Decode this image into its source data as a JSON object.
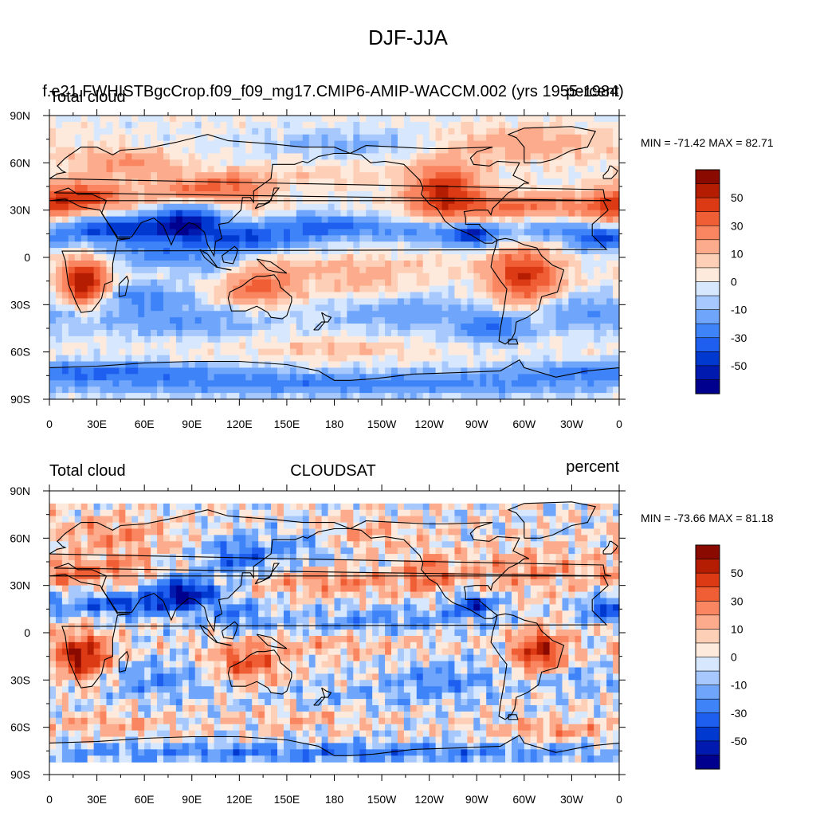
{
  "figure": {
    "title": "DJF-JJA",
    "colors": {
      "levels": [
        -60,
        -50,
        -40,
        -30,
        -20,
        -10,
        -5,
        0,
        5,
        10,
        20,
        30,
        40,
        50,
        60
      ],
      "palette": [
        "#00008f",
        "#001aaf",
        "#0039d0",
        "#1f5ff0",
        "#3e84f8",
        "#6fa6fb",
        "#a6c8fd",
        "#d7e8fe",
        "#feeadc",
        "#fecfb7",
        "#fcac8c",
        "#f98660",
        "#f05e36",
        "#dc3a14",
        "#b51d02",
        "#8a0a00"
      ],
      "land_outline": "#000000",
      "tick_color": "#000000"
    }
  },
  "chart_data": [
    {
      "type": "heatmap",
      "projection": "cylindrical-equidistant",
      "title": "",
      "left_title": "Total cloud",
      "center_title": "f.e21.FWHISTBgcCrop.f09_f09_mg17.CMIP6-AMIP-WACCM.002 (yrs 1955-1984)",
      "right_title": "percent",
      "stats_label": "MIN = -71.42 MAX =  82.71",
      "min": -71.42,
      "max": 82.71,
      "x_ticks": [
        "0",
        "30E",
        "60E",
        "90E",
        "120E",
        "150E",
        "180",
        "150W",
        "120W",
        "90W",
        "60W",
        "30W",
        "0"
      ],
      "y_ticks": [
        "90N",
        "60N",
        "30N",
        "0",
        "30S",
        "60S",
        "90S"
      ],
      "xlim": [
        0,
        360
      ],
      "ylim": [
        -90,
        90
      ],
      "colorbar_labels": [
        "50",
        "30",
        "10",
        "0",
        "-10",
        "-30",
        "-50"
      ],
      "lat_range": [
        -90,
        90
      ],
      "noise": 2,
      "blobs": [
        {
          "lon": 20,
          "lat": 38,
          "slon": 20,
          "slat": 7,
          "amp": 45
        },
        {
          "lon": 90,
          "lat": 42,
          "slon": 18,
          "slat": 6,
          "amp": 30
        },
        {
          "lon": 115,
          "lat": 48,
          "slon": 14,
          "slat": 5,
          "amp": 22
        },
        {
          "lon": 50,
          "lat": 60,
          "slon": 22,
          "slat": 6,
          "amp": 22
        },
        {
          "lon": 128,
          "lat": 38,
          "slon": 12,
          "slat": 7,
          "amp": 12
        },
        {
          "lon": 45,
          "lat": 18,
          "slon": 28,
          "slat": 6,
          "amp": -48
        },
        {
          "lon": 88,
          "lat": 22,
          "slon": 14,
          "slat": 8,
          "amp": -52
        },
        {
          "lon": 118,
          "lat": 12,
          "slon": 15,
          "slat": 6,
          "amp": -30
        },
        {
          "lon": 145,
          "lat": 12,
          "slon": 20,
          "slat": 5,
          "amp": -20
        },
        {
          "lon": 75,
          "lat": 2,
          "slon": 25,
          "slat": 6,
          "amp": -24
        },
        {
          "lon": 110,
          "lat": -10,
          "slon": 15,
          "slat": 6,
          "amp": -15
        },
        {
          "lon": 175,
          "lat": 20,
          "slon": 25,
          "slat": 5,
          "amp": -32
        },
        {
          "lon": 240,
          "lat": 16,
          "slon": 25,
          "slat": 5,
          "amp": -22
        },
        {
          "lon": 268,
          "lat": 14,
          "slon": 10,
          "slat": 5,
          "amp": -44
        },
        {
          "lon": 348,
          "lat": 12,
          "slon": 12,
          "slat": 5,
          "amp": -40
        },
        {
          "lon": 315,
          "lat": 18,
          "slon": 18,
          "slat": 6,
          "amp": -20
        },
        {
          "lon": 22,
          "lat": -16,
          "slon": 10,
          "slat": 10,
          "amp": 62
        },
        {
          "lon": 130,
          "lat": -18,
          "slon": 18,
          "slat": 8,
          "amp": 36
        },
        {
          "lon": 300,
          "lat": -12,
          "slon": 15,
          "slat": 12,
          "amp": 50
        },
        {
          "lon": 250,
          "lat": 42,
          "slon": 15,
          "slat": 12,
          "amp": 50
        },
        {
          "lon": 300,
          "lat": 32,
          "slon": 35,
          "slat": 6,
          "amp": 30
        },
        {
          "lon": 355,
          "lat": 28,
          "slon": 12,
          "slat": 8,
          "amp": 24
        },
        {
          "lon": 190,
          "lat": -6,
          "slon": 50,
          "slat": 5,
          "amp": 10
        },
        {
          "lon": 200,
          "lat": -18,
          "slon": 20,
          "slat": 6,
          "amp": 12
        },
        {
          "lon": 60,
          "lat": -25,
          "slon": 20,
          "slat": 6,
          "amp": -22
        },
        {
          "lon": 80,
          "lat": -40,
          "slon": 40,
          "slat": 7,
          "amp": -18
        },
        {
          "lon": 225,
          "lat": -35,
          "slon": 35,
          "slat": 8,
          "amp": -16
        },
        {
          "lon": 280,
          "lat": -45,
          "slon": 15,
          "slat": 6,
          "amp": -30
        },
        {
          "lon": 340,
          "lat": -35,
          "slon": 25,
          "slat": 8,
          "amp": -18
        },
        {
          "lon": 20,
          "lat": -72,
          "slon": 60,
          "slat": 4,
          "amp": -28
        },
        {
          "lon": 180,
          "lat": -80,
          "slon": 150,
          "slat": 5,
          "amp": -26
        },
        {
          "lon": 180,
          "lat": -58,
          "slon": 40,
          "slat": 4,
          "amp": 10
        },
        {
          "lon": 190,
          "lat": 72,
          "slon": 40,
          "slat": 6,
          "amp": -12
        },
        {
          "lon": 300,
          "lat": 72,
          "slon": 40,
          "slat": 8,
          "amp": 15
        },
        {
          "lon": 175,
          "lat": 52,
          "slon": 30,
          "slat": 6,
          "amp": 8
        }
      ]
    },
    {
      "type": "heatmap",
      "projection": "cylindrical-equidistant",
      "title": "",
      "left_title": "Total cloud",
      "center_title": "CLOUDSAT",
      "right_title": "percent",
      "stats_label": "MIN = -73.66 MAX =  81.18",
      "min": -73.66,
      "max": 81.18,
      "x_ticks": [
        "0",
        "30E",
        "60E",
        "90E",
        "120E",
        "150E",
        "180",
        "150W",
        "120W",
        "90W",
        "60W",
        "30W",
        "0"
      ],
      "y_ticks": [
        "90N",
        "60N",
        "30N",
        "0",
        "30S",
        "60S",
        "90S"
      ],
      "xlim": [
        0,
        360
      ],
      "ylim": [
        -90,
        90
      ],
      "colorbar_labels": [
        "50",
        "30",
        "10",
        "0",
        "-10",
        "-30",
        "-50"
      ],
      "lat_range": [
        -82,
        82
      ],
      "noise": 7,
      "blobs": [
        {
          "lon": 15,
          "lat": 38,
          "slon": 18,
          "slat": 6,
          "amp": 30
        },
        {
          "lon": 50,
          "lat": 42,
          "slon": 12,
          "slat": 6,
          "amp": 20
        },
        {
          "lon": 40,
          "lat": 62,
          "slon": 25,
          "slat": 8,
          "amp": 22
        },
        {
          "lon": 180,
          "lat": 32,
          "slon": 40,
          "slat": 6,
          "amp": 22
        },
        {
          "lon": 240,
          "lat": 38,
          "slon": 10,
          "slat": 8,
          "amp": 28
        },
        {
          "lon": 300,
          "lat": 40,
          "slon": 30,
          "slat": 10,
          "amp": 20
        },
        {
          "lon": 200,
          "lat": 62,
          "slon": 25,
          "slat": 8,
          "amp": 14
        },
        {
          "lon": 85,
          "lat": 25,
          "slon": 14,
          "slat": 7,
          "amp": -62
        },
        {
          "lon": 45,
          "lat": 18,
          "slon": 24,
          "slat": 5,
          "amp": -40
        },
        {
          "lon": 120,
          "lat": 48,
          "slon": 14,
          "slat": 9,
          "amp": -34
        },
        {
          "lon": 120,
          "lat": 12,
          "slon": 12,
          "slat": 6,
          "amp": -26
        },
        {
          "lon": 268,
          "lat": 18,
          "slon": 10,
          "slat": 5,
          "amp": -46
        },
        {
          "lon": 350,
          "lat": 15,
          "slon": 10,
          "slat": 5,
          "amp": -40
        },
        {
          "lon": 215,
          "lat": 10,
          "slon": 40,
          "slat": 5,
          "amp": -18
        },
        {
          "lon": 160,
          "lat": 55,
          "slon": 15,
          "slat": 8,
          "amp": -18
        },
        {
          "lon": 20,
          "lat": -15,
          "slon": 12,
          "slat": 10,
          "amp": 62
        },
        {
          "lon": 125,
          "lat": -20,
          "slon": 15,
          "slat": 8,
          "amp": 40
        },
        {
          "lon": 310,
          "lat": -12,
          "slon": 12,
          "slat": 10,
          "amp": 52
        },
        {
          "lon": 180,
          "lat": -8,
          "slon": 40,
          "slat": 5,
          "amp": 14
        },
        {
          "lon": 180,
          "lat": 3,
          "slon": 60,
          "slat": 3,
          "amp": -10
        },
        {
          "lon": 70,
          "lat": -30,
          "slon": 25,
          "slat": 8,
          "amp": -22
        },
        {
          "lon": 250,
          "lat": -30,
          "slon": 25,
          "slat": 8,
          "amp": -22
        },
        {
          "lon": 330,
          "lat": -30,
          "slon": 20,
          "slat": 6,
          "amp": -18
        },
        {
          "lon": 190,
          "lat": -40,
          "slon": 40,
          "slat": 6,
          "amp": -10
        },
        {
          "lon": 40,
          "lat": -58,
          "slon": 25,
          "slat": 4,
          "amp": 18
        },
        {
          "lon": 320,
          "lat": -62,
          "slon": 25,
          "slat": 4,
          "amp": 20
        },
        {
          "lon": 160,
          "lat": -55,
          "slon": 30,
          "slat": 4,
          "amp": 14
        },
        {
          "lon": 180,
          "lat": -76,
          "slon": 160,
          "slat": 4,
          "amp": -28
        }
      ]
    }
  ]
}
